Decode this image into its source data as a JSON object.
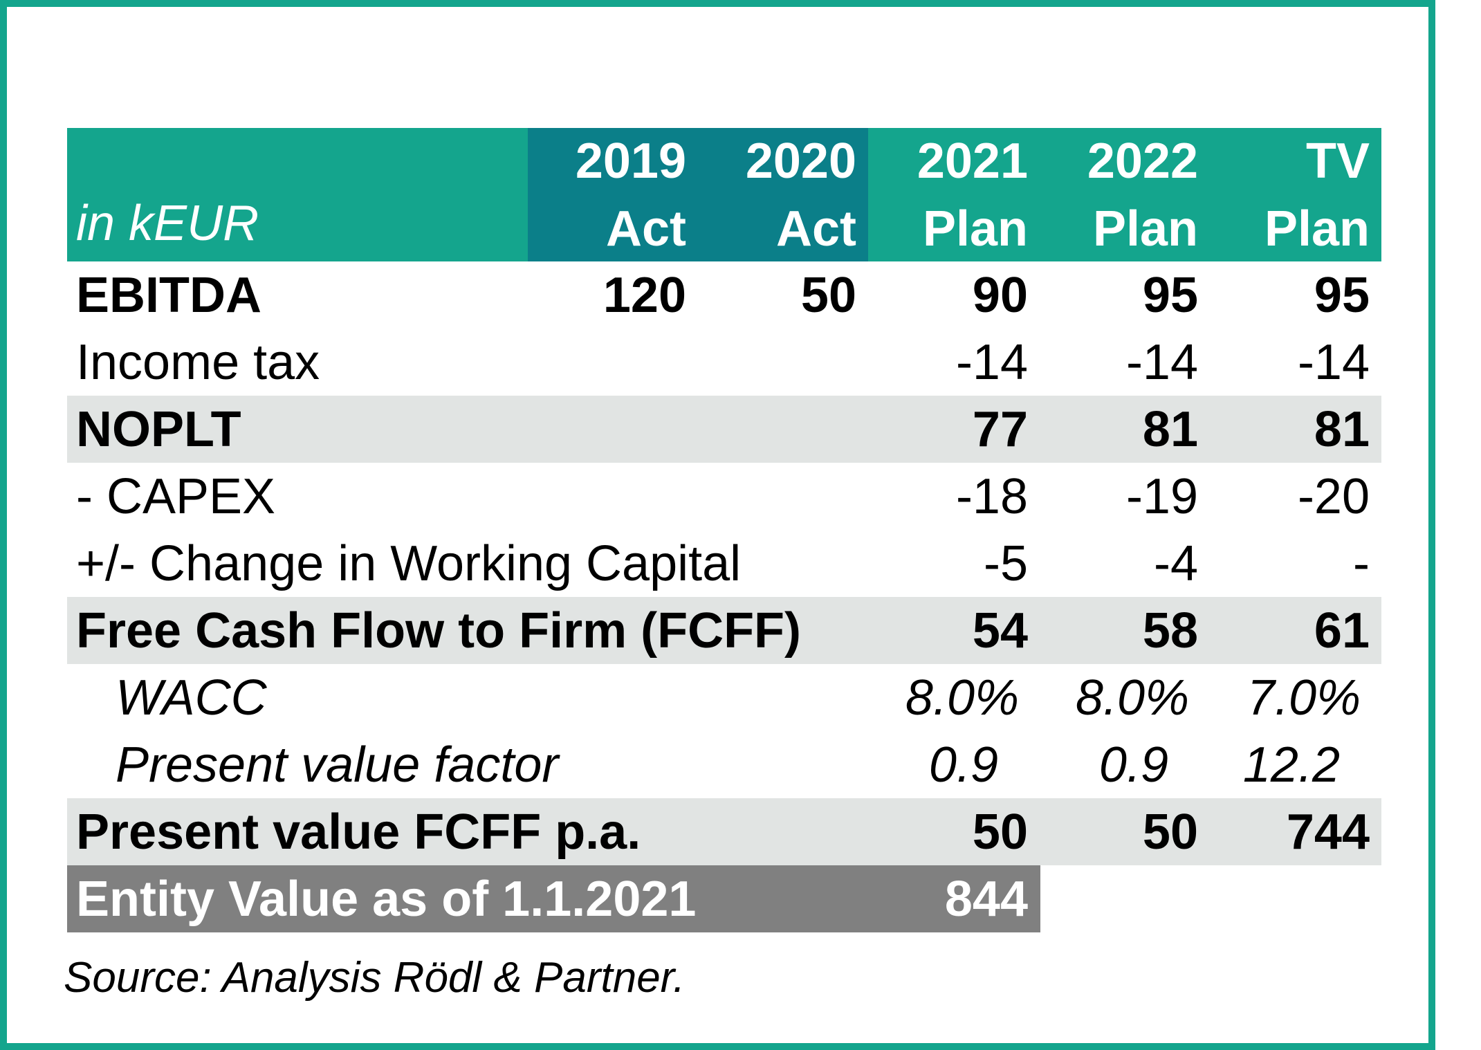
{
  "header": {
    "unit_label": "in kEUR",
    "columns": [
      {
        "year": "2019",
        "type": "Act"
      },
      {
        "year": "2020",
        "type": "Act"
      },
      {
        "year": "2021",
        "type": "Plan"
      },
      {
        "year": "2022",
        "type": "Plan"
      },
      {
        "year": "TV",
        "type": "Plan"
      }
    ]
  },
  "rows": {
    "ebitda": {
      "label": "EBITDA",
      "values": [
        "120",
        "50",
        "90",
        "95",
        "95"
      ]
    },
    "income_tax": {
      "label": "Income tax",
      "values": [
        "",
        "",
        "-14",
        "-14",
        "-14"
      ]
    },
    "noplt": {
      "label": "NOPLT",
      "values": [
        "",
        "",
        "77",
        "81",
        "81"
      ]
    },
    "capex": {
      "label": "- CAPEX",
      "values": [
        "",
        "",
        "-18",
        "-19",
        "-20"
      ]
    },
    "working_capital": {
      "label": "+/- Change in Working Capital",
      "values": [
        "",
        "",
        "-5",
        "-4",
        "-"
      ]
    },
    "fcff": {
      "label": "Free Cash Flow to Firm (FCFF)",
      "values": [
        "",
        "",
        "54",
        "58",
        "61"
      ]
    },
    "wacc": {
      "label": "WACC",
      "values": [
        "",
        "",
        "8.0%",
        "8.0%",
        "7.0%"
      ]
    },
    "pv_factor": {
      "label": "Present value factor",
      "values": [
        "",
        "",
        "0.9",
        "0.9",
        "12.2"
      ]
    },
    "pv_fcff": {
      "label": "Present value FCFF p.a.",
      "values": [
        "",
        "",
        "50",
        "50",
        "744"
      ]
    }
  },
  "entity_value": {
    "label": "Entity Value as of 1.1.2021",
    "value": "844"
  },
  "source": "Source: Analysis Rödl & Partner.",
  "colors": {
    "accent": "#14a58d",
    "actual_header": "#0b7f89",
    "highlight_row": "#e1e4e3",
    "entity_value_bg": "#808080"
  }
}
